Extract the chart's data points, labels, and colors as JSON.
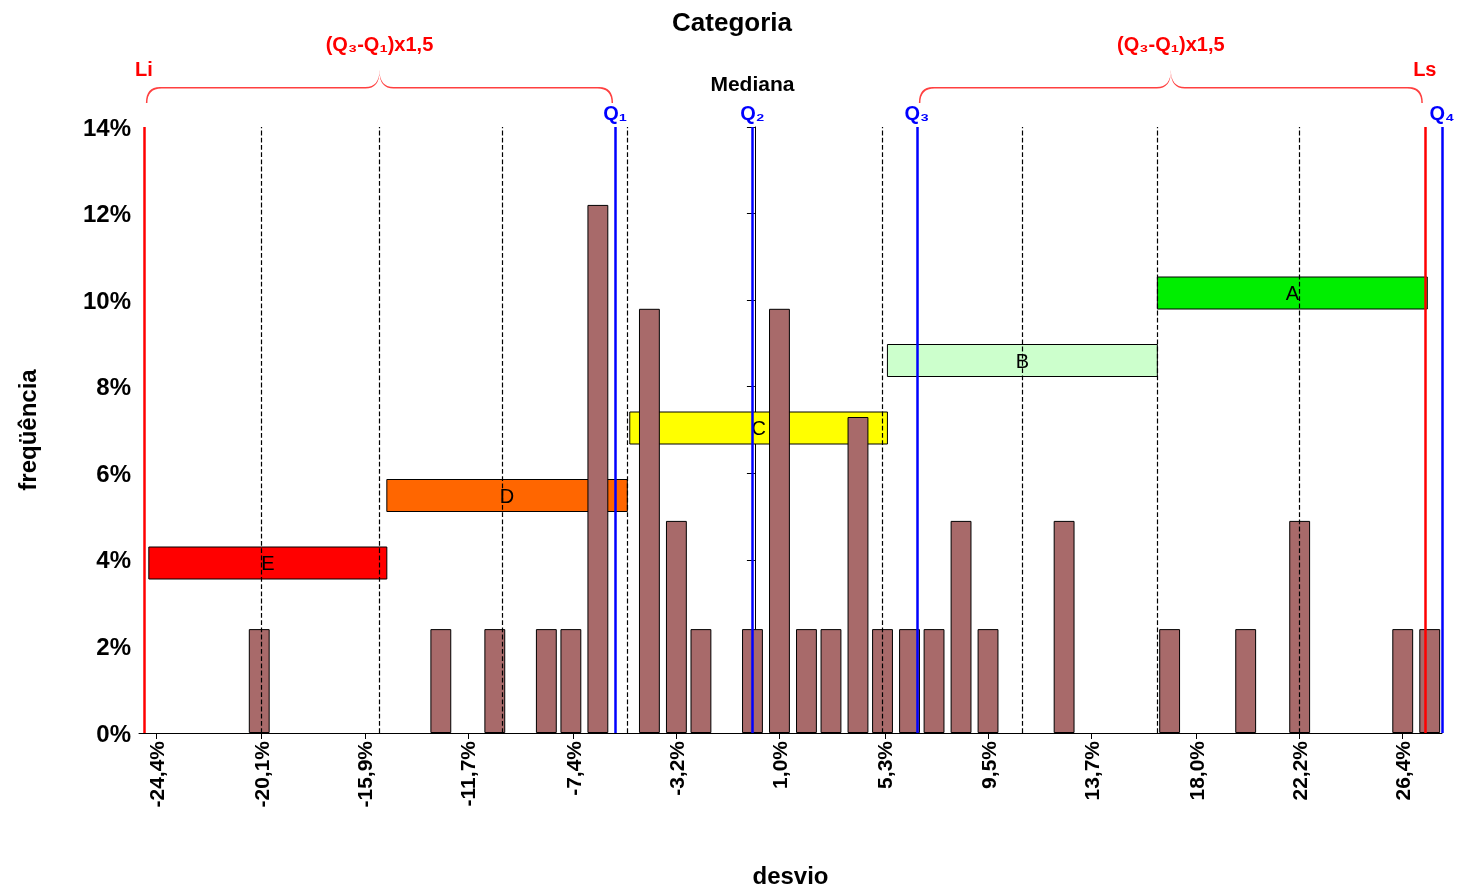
{
  "chart_data": {
    "type": "bar",
    "title": "Categoria",
    "xlabel": "desvio",
    "ylabel": "freqüência",
    "annotations": [
      "Mediana",
      "(Q₃-Q₁)x1,5",
      "(Q₃-Q₁)x1,5"
    ],
    "color": "#a86a6a",
    "x": [
      -20.2,
      -12.8,
      -10.6,
      -8.5,
      -7.5,
      -6.4,
      -4.3,
      -3.2,
      -2.2,
      -0.1,
      1.0,
      2.1,
      3.1,
      4.2,
      5.2,
      6.3,
      7.3,
      8.4,
      9.5,
      12.6,
      16.9,
      20.0,
      22.2,
      26.4,
      27.5
    ],
    "values": [
      2.4,
      2.4,
      2.4,
      2.4,
      2.4,
      12.2,
      9.8,
      4.9,
      2.4,
      2.4,
      9.8,
      2.4,
      2.4,
      7.3,
      2.4,
      2.4,
      2.4,
      4.9,
      2.4,
      4.9,
      2.4,
      2.4,
      4.9,
      2.4,
      2.4
    ],
    "bands": [
      {
        "axis": "x",
        "from": 16.4,
        "to": 27.4,
        "label": "A",
        "color": "#00ee00"
      },
      {
        "axis": "x",
        "from": 5.4,
        "to": 16.4,
        "label": "B",
        "color": "#ccffcc"
      },
      {
        "axis": "x",
        "from": -5.1,
        "to": 5.4,
        "label": "C",
        "color": "#ffff00"
      },
      {
        "axis": "x",
        "from": -15.0,
        "to": -5.2,
        "label": "D",
        "color": "#ff6600"
      },
      {
        "axis": "x",
        "from": -24.7,
        "to": -15.0,
        "label": "E",
        "color": "#ff0000"
      }
    ],
    "xlim": [
      -25.1,
      28.0
    ],
    "xticks": [
      {
        "value": -24.4,
        "label": "-24,4%"
      },
      {
        "value": -20.1,
        "label": "-20,1%"
      },
      {
        "value": -15.9,
        "label": "-15,9%"
      },
      {
        "value": -11.7,
        "label": "-11,7%"
      },
      {
        "value": -7.4,
        "label": "-7,4%"
      },
      {
        "value": -3.2,
        "label": "-3,2%"
      },
      {
        "value": 1.0,
        "label": "1,0%"
      },
      {
        "value": 5.3,
        "label": "5,3%"
      },
      {
        "value": 9.5,
        "label": "9,5%"
      },
      {
        "value": 13.7,
        "label": "13,7%"
      },
      {
        "value": 18.0,
        "label": "18,0%"
      },
      {
        "value": 22.2,
        "label": "22,2%"
      },
      {
        "value": 26.4,
        "label": "26,4%"
      }
    ],
    "ylim": [
      0,
      14
    ],
    "yticks": [
      {
        "value": 0,
        "label": "0%"
      },
      {
        "value": 2,
        "label": "2%"
      },
      {
        "value": 4,
        "label": "4%"
      },
      {
        "value": 6,
        "label": "6%"
      },
      {
        "value": 8,
        "label": "8%"
      },
      {
        "value": 10,
        "label": "10%"
      },
      {
        "value": 12,
        "label": "12%"
      },
      {
        "value": 14,
        "label": "14%"
      }
    ],
    "ref_lines": [
      {
        "axis": "x",
        "value": -24.9,
        "label": "Li",
        "color": "#ff0000",
        "line_style": "solid"
      },
      {
        "axis": "x",
        "value": -5.7,
        "label": "Q₁",
        "color": "#0000ff",
        "line_style": "solid"
      },
      {
        "axis": "x",
        "value": -0.1,
        "label": "Q₂",
        "color": "#0000ff",
        "line_style": "solid"
      },
      {
        "axis": "x",
        "value": 6.6,
        "label": "Q₃",
        "color": "#0000ff",
        "line_style": "solid"
      },
      {
        "axis": "x",
        "value": 27.3,
        "label": "Ls",
        "color": "#ff0000",
        "line_style": "solid"
      },
      {
        "axis": "x",
        "value": 28.0,
        "label": "Q₄",
        "color": "#0000ff",
        "line_style": "solid"
      },
      {
        "axis": "x",
        "value": -20.1,
        "color": "#000000",
        "line_style": "dashed"
      },
      {
        "axis": "x",
        "value": -15.3,
        "color": "#000000",
        "line_style": "dashed"
      },
      {
        "axis": "x",
        "value": -10.3,
        "color": "#000000",
        "line_style": "dashed"
      },
      {
        "axis": "x",
        "value": -5.2,
        "color": "#000000",
        "line_style": "dashed"
      },
      {
        "axis": "x",
        "value": 5.2,
        "color": "#000000",
        "line_style": "dashed"
      },
      {
        "axis": "x",
        "value": 10.9,
        "color": "#000000",
        "line_style": "dashed"
      },
      {
        "axis": "x",
        "value": 16.4,
        "color": "#000000",
        "line_style": "dashed"
      },
      {
        "axis": "x",
        "value": 22.2,
        "color": "#000000",
        "line_style": "dashed"
      }
    ],
    "grid": false
  }
}
